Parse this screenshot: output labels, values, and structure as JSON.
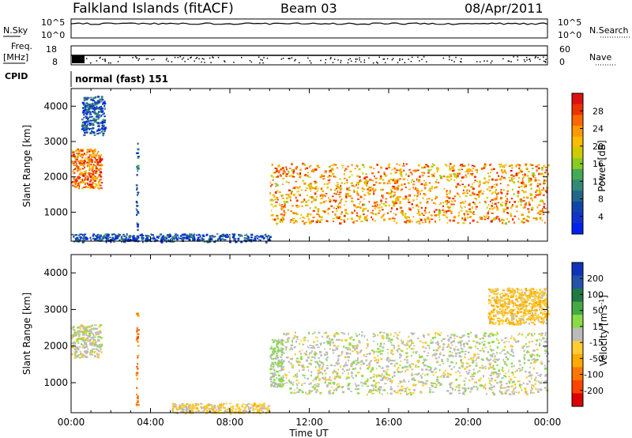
{
  "header": {
    "site": "Falkland Islands (fitACF)",
    "beam": "Beam 03",
    "date": "08/Apr/2011"
  },
  "strip_labels": {
    "nsky": "N.Sky",
    "nsearch": "N.Search",
    "freq_line1": "Freq.",
    "freq_line2": "[MHz]",
    "nave": "Nave",
    "cpid": "CPID",
    "cpid_value": "normal (fast) 151",
    "nsky_ticks": [
      "10^5",
      "10^0"
    ],
    "nsearch_ticks": [
      "10^5",
      "10^0"
    ],
    "freq_ticks": [
      "18",
      "8"
    ],
    "nave_ticks": [
      "60",
      "0"
    ]
  },
  "axes": {
    "ylabel": "Slant Range [km]",
    "xlabel": "Time UT",
    "yticks": [
      "1000",
      "2000",
      "3000",
      "4000"
    ],
    "xticks": [
      "00:00",
      "04:00",
      "08:00",
      "12:00",
      "16:00",
      "20:00",
      "00:00"
    ]
  },
  "power_scale": {
    "label": "Power [dB]",
    "ticks": [
      "28",
      "24",
      "20",
      "16",
      "12",
      "8",
      "4"
    ],
    "colors": [
      "#dd1111",
      "#ee3300",
      "#ff6600",
      "#ff9900",
      "#ffbb00",
      "#cccc00",
      "#88cc22",
      "#44aa55",
      "#338877",
      "#226688",
      "#1144aa",
      "#1133cc",
      "#0022ee"
    ]
  },
  "velocity_scale": {
    "label": "Velocity [m s",
    "label_sup": "-1",
    "label_end": "]",
    "ticks": [
      "200",
      "100",
      "50",
      "15",
      "-15",
      "-50",
      "-100",
      "-200"
    ],
    "colors": [
      "#1133bb",
      "#2255aa",
      "#227744",
      "#44aa44",
      "#88dd44",
      "#bbbbbb",
      "#ffcc33",
      "#ffaa00",
      "#ff7700",
      "#ff4400",
      "#dd0000"
    ]
  },
  "chart_data": [
    {
      "type": "heatmap",
      "title": "",
      "quantity": "Power",
      "xlabel": "Time UT",
      "ylabel": "Slant Range [km]",
      "xlim": [
        "00:00",
        "24:00"
      ],
      "ylim": [
        180,
        4500
      ],
      "colorbar": "Power [dB]",
      "clim": [
        0,
        32
      ],
      "regions": [
        {
          "t_start": "00:00",
          "t_end": "01:30",
          "range_km": [
            1700,
            2800
          ],
          "typical_dB": 26
        },
        {
          "t_start": "00:30",
          "t_end": "01:40",
          "range_km": [
            3200,
            4300
          ],
          "typical_dB": 6
        },
        {
          "t_start": "10:00",
          "t_end": "24:00",
          "range_km": [
            700,
            2400
          ],
          "typical_dB": 24
        },
        {
          "t_start": "00:00",
          "t_end": "10:00",
          "range_km": [
            180,
            400
          ],
          "typical_dB": 5
        },
        {
          "t_start": "03:15",
          "t_end": "03:20",
          "range_km": [
            500,
            3000
          ],
          "typical_dB": 8
        }
      ]
    },
    {
      "type": "heatmap",
      "title": "",
      "quantity": "Velocity",
      "xlabel": "Time UT",
      "ylabel": "Slant Range [km]",
      "xlim": [
        "00:00",
        "24:00"
      ],
      "ylim": [
        180,
        4500
      ],
      "colorbar": "Velocity [m s-1]",
      "clim": [
        -250,
        250
      ],
      "regions": [
        {
          "t_start": "00:00",
          "t_end": "01:30",
          "range_km": [
            1700,
            2600
          ],
          "typical_ms": 0
        },
        {
          "t_start": "10:00",
          "t_end": "10:40",
          "range_km": [
            900,
            2200
          ],
          "typical_ms": 30
        },
        {
          "t_start": "10:40",
          "t_end": "24:00",
          "range_km": [
            700,
            2400
          ],
          "typical_ms": 0
        },
        {
          "t_start": "03:15",
          "t_end": "03:20",
          "range_km": [
            400,
            3000
          ],
          "typical_ms": -150
        },
        {
          "t_start": "05:00",
          "t_end": "10:00",
          "range_km": [
            180,
            450
          ],
          "typical_ms": -40
        },
        {
          "t_start": "21:00",
          "t_end": "24:00",
          "range_km": [
            2600,
            3600
          ],
          "typical_ms": -60
        }
      ]
    }
  ]
}
